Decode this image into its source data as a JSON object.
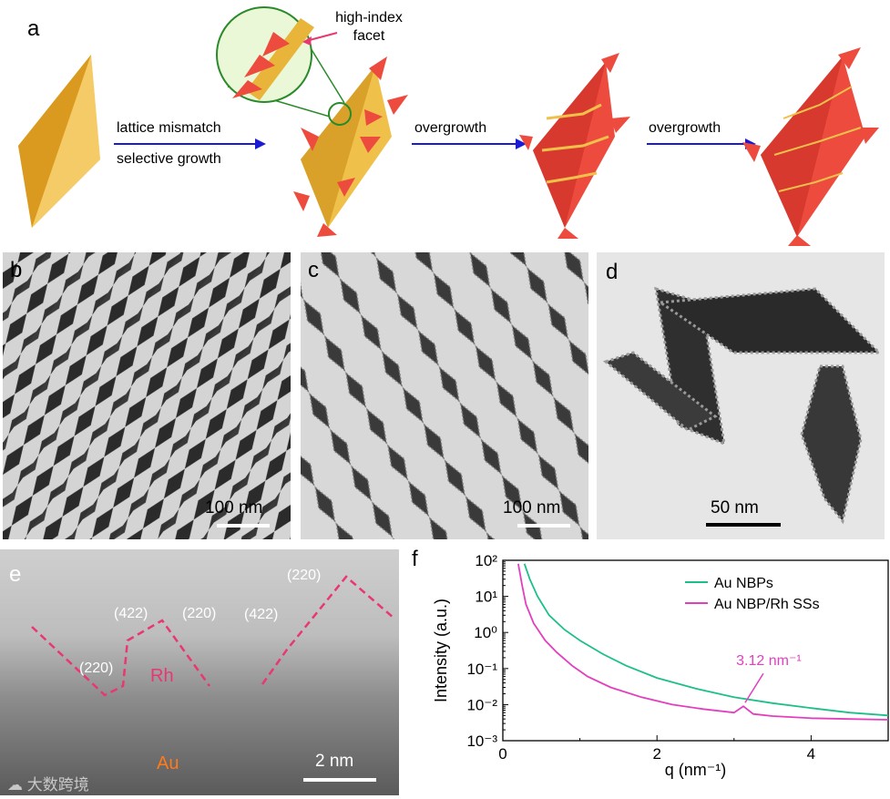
{
  "panel_a": {
    "label": "a",
    "callout": {
      "line1": "high-index",
      "line2": "facet"
    },
    "arrow1": {
      "top": "lattice mismatch",
      "bottom": "selective growth"
    },
    "arrow2": {
      "top": "overgrowth"
    },
    "arrow3": {
      "top": "overgrowth"
    }
  },
  "panel_b": {
    "label": "b",
    "scale": "100 nm"
  },
  "panel_c": {
    "label": "c",
    "scale": "100 nm"
  },
  "panel_d": {
    "label": "d",
    "scale": "50 nm"
  },
  "panel_e": {
    "label": "e",
    "scale": "2 nm",
    "facets": [
      "(422)",
      "(220)",
      "(220)",
      "(422)",
      "(220)"
    ],
    "rh": "Rh",
    "au": "Au",
    "watermark": "大数跨境"
  },
  "panel_f": {
    "label": "f"
  },
  "colors": {
    "gold": "#e8b53a",
    "red": "#ee4b3f",
    "arrow": "#1b1bd6",
    "teal": "#1cbf8a",
    "magenta": "#e23fbf",
    "pinkline": "#e8386f"
  },
  "chart_data": {
    "type": "line",
    "xlabel": "q (nm⁻¹)",
    "ylabel": "Intensity (a.u.)",
    "xlim": [
      0,
      5
    ],
    "ylim": [
      0.001,
      100
    ],
    "yscale": "log",
    "xticks": [
      "0",
      "2",
      "4"
    ],
    "yticks": [
      "10²",
      "10¹",
      "10⁰",
      "10⁻¹",
      "10⁻²",
      "10⁻³"
    ],
    "legend_position": "top-right",
    "annotation": "3.12 nm⁻¹",
    "series": [
      {
        "name": "Au NBPs",
        "color": "#1cbf8a",
        "x": [
          0.28,
          0.35,
          0.45,
          0.6,
          0.8,
          1.0,
          1.3,
          1.6,
          2.0,
          2.5,
          3.0,
          3.5,
          4.0,
          4.5,
          5.0
        ],
        "y": [
          80,
          30,
          10,
          3,
          1.2,
          0.6,
          0.25,
          0.12,
          0.055,
          0.028,
          0.016,
          0.011,
          0.008,
          0.006,
          0.005
        ]
      },
      {
        "name": "Au NBP/Rh SSs",
        "color": "#e23fbf",
        "x": [
          0.2,
          0.25,
          0.3,
          0.4,
          0.55,
          0.7,
          0.9,
          1.1,
          1.4,
          1.8,
          2.2,
          2.6,
          3.0,
          3.12,
          3.25,
          3.5,
          4.0,
          4.5,
          5.0
        ],
        "y": [
          80,
          20,
          6,
          1.8,
          0.6,
          0.28,
          0.12,
          0.06,
          0.03,
          0.016,
          0.01,
          0.0075,
          0.006,
          0.009,
          0.0055,
          0.0048,
          0.0042,
          0.004,
          0.0038
        ]
      }
    ]
  }
}
